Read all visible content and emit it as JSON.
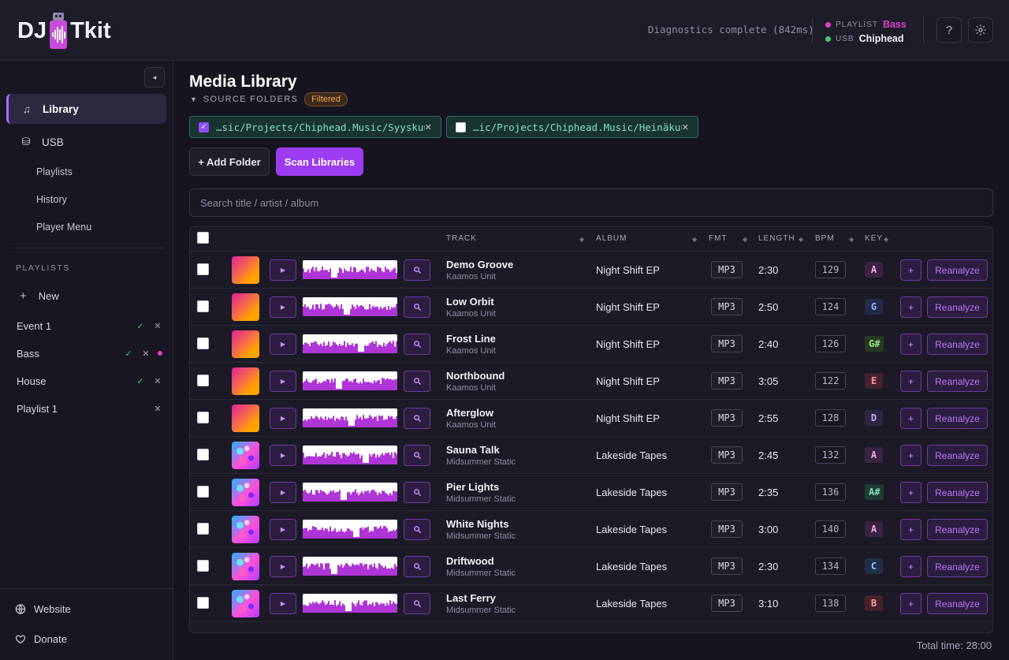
{
  "header": {
    "logo_left": "DJ",
    "logo_right": "Tkit",
    "diagnostics": "Diagnostics complete (842ms)",
    "status": [
      {
        "label": "PLAYLIST",
        "value": "Bass",
        "dot_color": "#e040c8",
        "value_color": "#e040c8"
      },
      {
        "label": "USB",
        "value": "Chiphead",
        "dot_color": "#3fc97a",
        "value_color": "#f2f1f7"
      }
    ],
    "help_label": "?",
    "settings_icon": "gear-icon"
  },
  "sidebar": {
    "collapse_label": "◂",
    "nav": [
      {
        "label": "Library",
        "icon": "♫",
        "active": true
      },
      {
        "label": "USB",
        "icon": "⛁",
        "active": false
      }
    ],
    "subnav": [
      "Playlists",
      "History",
      "Player Menu"
    ],
    "playlists_heading": "PLAYLISTS",
    "new_label": "New",
    "playlists": [
      {
        "name": "Event 1",
        "synced": true,
        "active": false
      },
      {
        "name": "Bass",
        "synced": true,
        "active": true
      },
      {
        "name": "House",
        "synced": true,
        "active": false
      },
      {
        "name": "Playlist 1",
        "synced": false,
        "active": false
      }
    ],
    "footer": [
      {
        "label": "Website",
        "icon": "globe-icon"
      },
      {
        "label": "Donate",
        "icon": "heart-icon"
      }
    ]
  },
  "main": {
    "title": "Media Library",
    "source_label": "SOURCE FOLDERS",
    "filter_badge": "Filtered",
    "folders": [
      {
        "path": "…sic/Projects/Chiphead.Music/Syyskuu/",
        "checked": true
      },
      {
        "path": "…ic/Projects/Chiphead.Music/Heinäkuu/",
        "checked": false
      }
    ],
    "add_folder_label": "+ Add Folder",
    "scan_label": "Scan Libraries",
    "search_placeholder": "Search title / artist / album",
    "columns": [
      "TRACK",
      "ALBUM",
      "FMT",
      "LENGTH",
      "BPM",
      "KEY"
    ],
    "reanalyze_label": "Reanalyze",
    "tracks": [
      {
        "title": "Demo Groove",
        "artist": "Kaamos Unit",
        "album": "Night Shift EP",
        "format": "MP3",
        "length": "2:30",
        "bpm": "129",
        "key": "A",
        "art": "a",
        "key_bg": "#3a2342",
        "key_fg": "#f0a8e4"
      },
      {
        "title": "Low Orbit",
        "artist": "Kaamos Unit",
        "album": "Night Shift EP",
        "format": "MP3",
        "length": "2:50",
        "bpm": "124",
        "key": "G",
        "art": "a",
        "key_bg": "#232a4a",
        "key_fg": "#9bb2ff"
      },
      {
        "title": "Frost Line",
        "artist": "Kaamos Unit",
        "album": "Night Shift EP",
        "format": "MP3",
        "length": "2:40",
        "bpm": "126",
        "key": "G#",
        "art": "a",
        "key_bg": "#243a22",
        "key_fg": "#9be07f"
      },
      {
        "title": "Northbound",
        "artist": "Kaamos Unit",
        "album": "Night Shift EP",
        "format": "MP3",
        "length": "3:05",
        "bpm": "122",
        "key": "E",
        "art": "a",
        "key_bg": "#42222c",
        "key_fg": "#ff8fa8"
      },
      {
        "title": "Afterglow",
        "artist": "Kaamos Unit",
        "album": "Night Shift EP",
        "format": "MP3",
        "length": "2:55",
        "bpm": "128",
        "key": "D",
        "art": "a",
        "key_bg": "#2e2540",
        "key_fg": "#c6a8f5"
      },
      {
        "title": "Sauna Talk",
        "artist": "Midsummer Static",
        "album": "Lakeside Tapes",
        "format": "MP3",
        "length": "2:45",
        "bpm": "132",
        "key": "A",
        "art": "b",
        "key_bg": "#3a2342",
        "key_fg": "#f0a8e4"
      },
      {
        "title": "Pier Lights",
        "artist": "Midsummer Static",
        "album": "Lakeside Tapes",
        "format": "MP3",
        "length": "2:35",
        "bpm": "136",
        "key": "A#",
        "art": "b",
        "key_bg": "#1f3a30",
        "key_fg": "#7fe0b6"
      },
      {
        "title": "White Nights",
        "artist": "Midsummer Static",
        "album": "Lakeside Tapes",
        "format": "MP3",
        "length": "3:00",
        "bpm": "140",
        "key": "A",
        "art": "b",
        "key_bg": "#3a2342",
        "key_fg": "#f0a8e4"
      },
      {
        "title": "Driftwood",
        "artist": "Midsummer Static",
        "album": "Lakeside Tapes",
        "format": "MP3",
        "length": "2:30",
        "bpm": "134",
        "key": "C",
        "art": "b",
        "key_bg": "#1f2f45",
        "key_fg": "#8fc2ff"
      },
      {
        "title": "Last Ferry",
        "artist": "Midsummer Static",
        "album": "Lakeside Tapes",
        "format": "MP3",
        "length": "3:10",
        "bpm": "138",
        "key": "B",
        "art": "b",
        "key_bg": "#45222a",
        "key_fg": "#ff9a9a"
      }
    ],
    "total_time": "Total time: 28:00"
  }
}
